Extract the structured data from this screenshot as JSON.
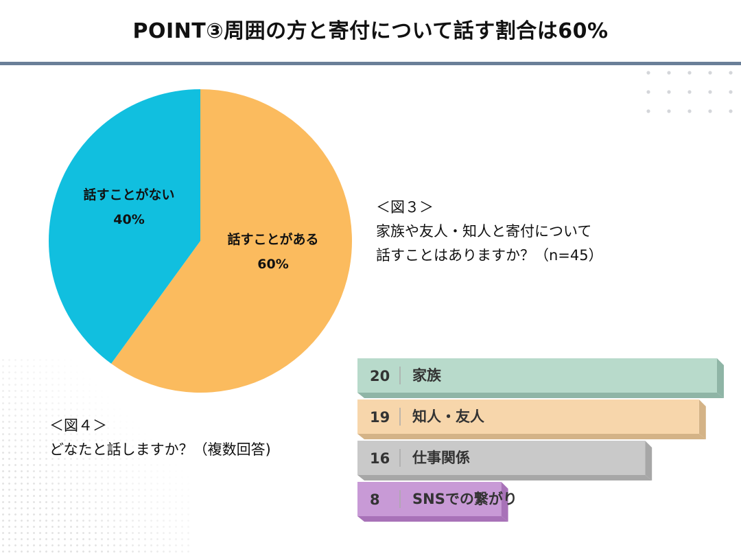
{
  "title": "POINT③周囲の方と寄付について話す割合は60%",
  "figure3": {
    "label": "＜図３＞",
    "question_line1": "家族や友人・知人と寄付について",
    "question_line2": "話すことはありますか？（n=45）"
  },
  "figure4": {
    "label": "＜図４＞",
    "question": "どなたと話しますか？（複数回答)"
  },
  "chart_data": [
    {
      "type": "pie",
      "slices": [
        {
          "name": "話すことがある",
          "value": 60,
          "value_label": "60%",
          "color": "#fbbb5e"
        },
        {
          "name": "話すことがない",
          "value": 40,
          "value_label": "40%",
          "color": "#11bfdf"
        }
      ]
    },
    {
      "type": "bar",
      "orientation": "horizontal",
      "categories": [
        "家族",
        "知人・友人",
        "仕事関係",
        "SNSでの繋がり"
      ],
      "values": [
        20,
        19,
        16,
        8
      ],
      "colors": [
        {
          "face": "#b8dacb",
          "side": "#8fb5a6"
        },
        {
          "face": "#f7d6ab",
          "side": "#d4b387"
        },
        {
          "face": "#c9c9c9",
          "side": "#a7a7a7"
        },
        {
          "face": "#c89ad6",
          "side": "#a872b8"
        }
      ]
    }
  ]
}
